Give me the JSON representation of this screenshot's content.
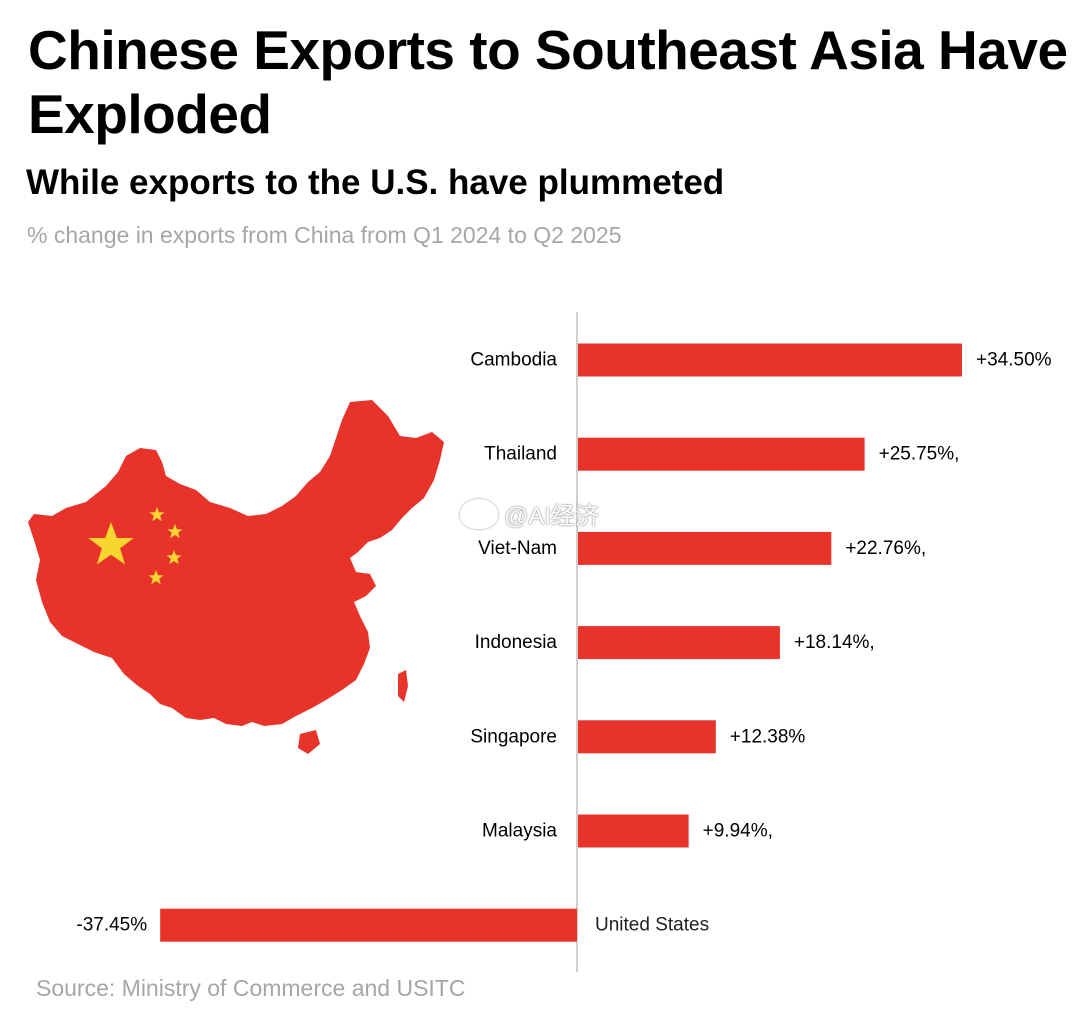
{
  "header": {
    "title": "Chinese Exports to Southeast Asia Have Exploded",
    "subtitle": "While exports to the U.S. have plummeted",
    "caption": "% change in exports from China from Q1 2024 to Q2 2025"
  },
  "footer": {
    "source": "Source: Ministry of Commerce and USITC"
  },
  "watermark": {
    "text": "@AI经济"
  },
  "colors": {
    "bar": "#e8332a",
    "flag_red": "#e8332a",
    "flag_star": "#f7d630",
    "axis": "#bfbfbf"
  },
  "chart_data": {
    "type": "bar",
    "orientation": "horizontal",
    "categories": [
      "Cambodia",
      "Thailand",
      "Viet-Nam",
      "Indonesia",
      "Singapore",
      "Malaysia",
      "United States"
    ],
    "values": [
      34.5,
      25.75,
      22.76,
      18.14,
      12.38,
      9.94,
      -37.45
    ],
    "value_labels": [
      "+34.50%",
      "+25.75%,",
      "+22.76%,",
      "+18.14%,",
      "+12.38%",
      "+9.94%,",
      "-37.45%"
    ],
    "xlim": [
      -37.45,
      34.5
    ],
    "grid": false
  }
}
